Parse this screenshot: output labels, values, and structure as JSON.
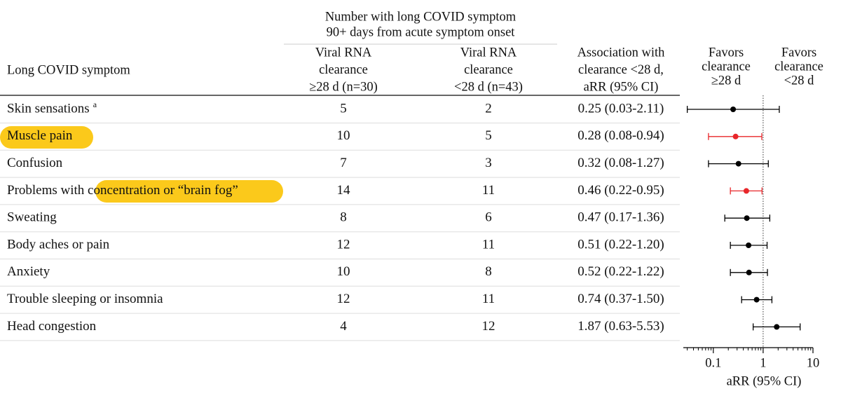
{
  "table": {
    "group_header": [
      "Number with long COVID symptom",
      "90+ days from acute symptom onset"
    ],
    "columns": [
      [
        "Long COVID symptom"
      ],
      [
        "Viral RNA",
        "clearance",
        "≥28 d (n=30)"
      ],
      [
        "Viral RNA",
        "clearance",
        "<28 d (n=43)"
      ],
      [
        "Association with",
        "clearance <28 d,",
        "aRR (95% CI)"
      ]
    ],
    "rows": [
      {
        "label": "Skin sensations",
        "note": "a",
        "cells": [
          "5",
          "2",
          "0.25 (0.03-2.11)"
        ]
      },
      {
        "label": "Muscle pain",
        "cells": [
          "10",
          "5",
          "0.28 (0.08-0.94)"
        ]
      },
      {
        "label": "Confusion",
        "cells": [
          "7",
          "3",
          "0.32 (0.08-1.27)"
        ]
      },
      {
        "label": "Problems with concentration or “brain fog”",
        "cells": [
          "14",
          "11",
          "0.46 (0.22-0.95)"
        ]
      },
      {
        "label": "Sweating",
        "cells": [
          "8",
          "6",
          "0.47 (0.17-1.36)"
        ]
      },
      {
        "label": "Body aches or pain",
        "cells": [
          "12",
          "11",
          "0.51 (0.22-1.20)"
        ]
      },
      {
        "label": "Anxiety",
        "cells": [
          "10",
          "8",
          "0.52 (0.22-1.22)"
        ]
      },
      {
        "label": "Trouble sleeping or insomnia",
        "cells": [
          "12",
          "11",
          "0.74 (0.37-1.50)"
        ]
      },
      {
        "label": "Head congestion",
        "cells": [
          "4",
          "12",
          "1.87 (0.63-5.53)"
        ]
      }
    ]
  },
  "chart_data": {
    "type": "forest",
    "favors_left": [
      "Favors",
      "clearance",
      "≥28 d"
    ],
    "favors_right": [
      "Favors",
      "clearance",
      "<28 d"
    ],
    "xlabel": "aRR (95% CI)",
    "xscale": "log",
    "xlim": [
      0.025,
      10
    ],
    "xticks": [
      0.1,
      1,
      10
    ],
    "minor_xticks": [
      0.03,
      0.04,
      0.05,
      0.06,
      0.07,
      0.08,
      0.09,
      0.2,
      0.3,
      0.4,
      0.5,
      0.6,
      0.7,
      0.8,
      0.9,
      2,
      3,
      4,
      5,
      6,
      7,
      8,
      9
    ],
    "ref_line": 1,
    "values": [
      0.25,
      0.28,
      0.32,
      0.46,
      0.47,
      0.51,
      0.52,
      0.74,
      1.87
    ],
    "lower": [
      0.03,
      0.08,
      0.08,
      0.22,
      0.17,
      0.22,
      0.22,
      0.37,
      0.63
    ],
    "upper": [
      2.11,
      0.94,
      1.27,
      0.95,
      1.36,
      1.2,
      1.22,
      1.5,
      5.53
    ],
    "colors": [
      "#000000",
      "#e8262a",
      "#000000",
      "#e8262a",
      "#000000",
      "#000000",
      "#000000",
      "#000000",
      "#000000"
    ]
  }
}
